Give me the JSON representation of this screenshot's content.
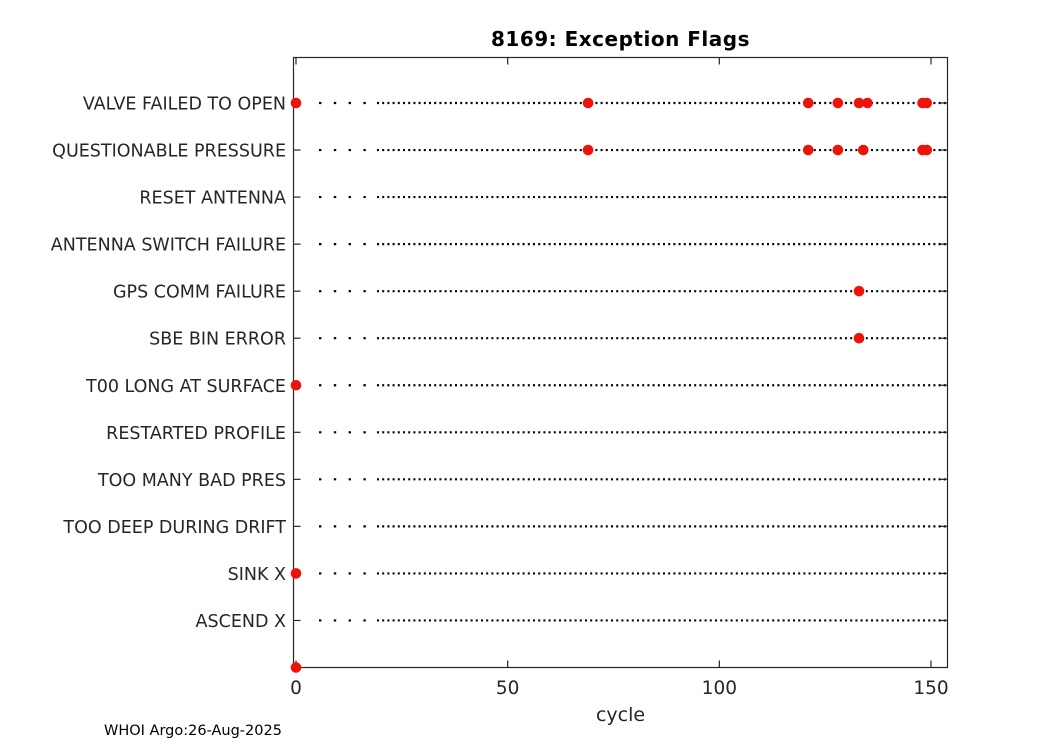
{
  "page": {
    "background": "#ffffff"
  },
  "chart_data": {
    "type": "scatter",
    "title": "8169: Exception Flags",
    "xlabel": "cycle",
    "footer": "WHOI Argo:26-Aug-2025",
    "xticks": [
      0,
      50,
      100,
      150
    ],
    "xlim": [
      0,
      154
    ],
    "grid": "dotted-row-guides",
    "legend": "none",
    "marker_color": "#ee1208",
    "guide_line_color": "#000000",
    "axis_color": "#262626",
    "label_color": "#262626",
    "categories": [
      "VALVE FAILED TO OPEN",
      "QUESTIONABLE PRESSURE",
      "RESET ANTENNA",
      "ANTENNA SWITCH FAILURE",
      "GPS COMM FAILURE",
      "SBE BIN ERROR",
      "T00 LONG AT SURFACE",
      "RESTARTED PROFILE",
      "TOO MANY BAD PRES",
      "TOO DEEP DURING DRIFT",
      "SINK X",
      "ASCEND X"
    ],
    "rows": [
      {
        "label": "VALVE FAILED TO OPEN",
        "cycles": [
          0,
          69,
          121,
          128,
          133,
          135,
          148,
          149
        ]
      },
      {
        "label": "QUESTIONABLE PRESSURE",
        "cycles": [
          69,
          121,
          128,
          134,
          148,
          149
        ]
      },
      {
        "label": "RESET ANTENNA",
        "cycles": []
      },
      {
        "label": "ANTENNA SWITCH FAILURE",
        "cycles": []
      },
      {
        "label": "GPS COMM FAILURE",
        "cycles": [
          133
        ]
      },
      {
        "label": "SBE BIN ERROR",
        "cycles": [
          133
        ]
      },
      {
        "label": "T00 LONG AT SURFACE",
        "cycles": [
          0
        ]
      },
      {
        "label": "RESTARTED PROFILE",
        "cycles": []
      },
      {
        "label": "TOO MANY BAD PRES",
        "cycles": []
      },
      {
        "label": "TOO DEEP DURING DRIFT",
        "cycles": []
      },
      {
        "label": "SINK X",
        "cycles": [
          0
        ]
      },
      {
        "label": "ASCEND X",
        "cycles": []
      }
    ],
    "baseline_points": [
      0
    ]
  }
}
